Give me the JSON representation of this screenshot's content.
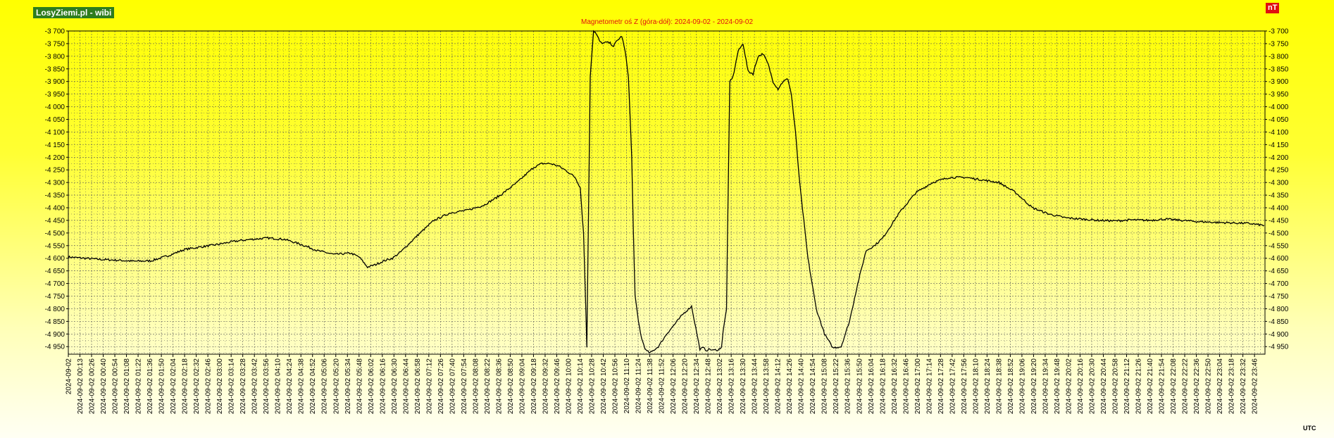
{
  "site_label": "LosyZiemi.pl - wibi",
  "unit_label": "nT",
  "utc_label": "UTC",
  "colors": {
    "line": "#000000",
    "grid": "#555555",
    "title": "#e01010",
    "badge": "#2e7d1e",
    "unit_badge": "#e01010"
  },
  "chart_data": {
    "type": "line",
    "title": "Magnetometr oś Z (góra-dół): 2024-09-02 - 2024-09-02",
    "xlabel": "",
    "ylabel": "",
    "ylim": [
      -4980,
      -3700
    ],
    "y_ticks": [
      -3700,
      -3750,
      -3800,
      -3850,
      -3900,
      -3950,
      -4000,
      -4050,
      -4100,
      -4150,
      -4200,
      -4250,
      -4300,
      -4350,
      -4400,
      -4450,
      -4500,
      -4550,
      -4600,
      -4650,
      -4700,
      -4750,
      -4800,
      -4850,
      -4900,
      -4950
    ],
    "y_tick_labels": [
      "-3 700",
      "-3 750",
      "-3 800",
      "-3 850",
      "-3 900",
      "-3 950",
      "-4 000",
      "-4 050",
      "-4 100",
      "-4 150",
      "-4 200",
      "-4 250",
      "-4 300",
      "-4 350",
      "-4 400",
      "-4 450",
      "-4 500",
      "-4 550",
      "-4 600",
      "-4 650",
      "-4 700",
      "-4 750",
      "-4 800",
      "-4 850",
      "-4 900",
      "-4 950"
    ],
    "x_tick_labels": [
      "2024-09-02",
      "2024-09-02 00:13",
      "2024-09-02 00:26",
      "2024-09-02 00:40",
      "2024-09-02 00:54",
      "2024-09-02 01:08",
      "2024-09-02 01:22",
      "2024-09-02 01:36",
      "2024-09-02 01:50",
      "2024-09-02 02:04",
      "2024-09-02 02:18",
      "2024-09-02 02:32",
      "2024-09-02 02:46",
      "2024-09-02 03:00",
      "2024-09-02 03:14",
      "2024-09-02 03:28",
      "2024-09-02 03:42",
      "2024-09-02 03:56",
      "2024-09-02 04:10",
      "2024-09-02 04:24",
      "2024-09-02 04:38",
      "2024-09-02 04:52",
      "2024-09-02 05:06",
      "2024-09-02 05:20",
      "2024-09-02 05:34",
      "2024-09-02 05:48",
      "2024-09-02 06:02",
      "2024-09-02 06:16",
      "2024-09-02 06:30",
      "2024-09-02 06:44",
      "2024-09-02 06:58",
      "2024-09-02 07:12",
      "2024-09-02 07:26",
      "2024-09-02 07:40",
      "2024-09-02 07:54",
      "2024-09-02 08:08",
      "2024-09-02 08:22",
      "2024-09-02 08:36",
      "2024-09-02 08:50",
      "2024-09-02 09:04",
      "2024-09-02 09:18",
      "2024-09-02 09:32",
      "2024-09-02 09:46",
      "2024-09-02 10:00",
      "2024-09-02 10:14",
      "2024-09-02 10:28",
      "2024-09-02 10:42",
      "2024-09-02 10:56",
      "2024-09-02 11:10",
      "2024-09-02 11:24",
      "2024-09-02 11:38",
      "2024-09-02 11:52",
      "2024-09-02 12:06",
      "2024-09-02 12:20",
      "2024-09-02 12:34",
      "2024-09-02 12:48",
      "2024-09-02 13:02",
      "2024-09-02 13:16",
      "2024-09-02 13:30",
      "2024-09-02 13:44",
      "2024-09-02 13:58",
      "2024-09-02 14:12",
      "2024-09-02 14:26",
      "2024-09-02 14:40",
      "2024-09-02 14:54",
      "2024-09-02 15:08",
      "2024-09-02 15:22",
      "2024-09-02 15:36",
      "2024-09-02 15:50",
      "2024-09-02 16:04",
      "2024-09-02 16:18",
      "2024-09-02 16:32",
      "2024-09-02 16:46",
      "2024-09-02 17:00",
      "2024-09-02 17:14",
      "2024-09-02 17:28",
      "2024-09-02 17:42",
      "2024-09-02 17:56",
      "2024-09-02 18:10",
      "2024-09-02 18:24",
      "2024-09-02 18:38",
      "2024-09-02 18:52",
      "2024-09-02 19:06",
      "2024-09-02 19:20",
      "2024-09-02 19:34",
      "2024-09-02 19:48",
      "2024-09-02 20:02",
      "2024-09-02 20:16",
      "2024-09-02 20:30",
      "2024-09-02 20:44",
      "2024-09-02 20:58",
      "2024-09-02 21:12",
      "2024-09-02 21:26",
      "2024-09-02 21:40",
      "2024-09-02 21:54",
      "2024-09-02 22:08",
      "2024-09-02 22:22",
      "2024-09-02 22:36",
      "2024-09-02 22:50",
      "2024-09-02 23:04",
      "2024-09-02 23:18",
      "2024-09-02 23:32",
      "2024-09-02 23:46"
    ],
    "grid": true,
    "legend": "none",
    "series": [
      {
        "x_minutes": [
          0,
          20,
          40,
          60,
          80,
          100,
          120,
          140,
          160,
          180,
          200,
          220,
          240,
          260,
          280,
          300,
          320,
          340,
          350,
          360,
          370,
          380,
          390,
          400,
          420,
          440,
          460,
          480,
          500,
          520,
          540,
          560,
          570,
          580,
          590,
          600,
          610,
          616,
          620,
          624,
          628,
          632,
          634,
          638,
          640,
          644,
          648,
          652,
          656,
          660,
          666,
          670,
          674,
          678,
          680,
          682,
          686,
          690,
          695,
          700,
          710,
          720,
          730,
          740,
          750,
          760,
          764,
          768,
          772,
          776,
          780,
          782,
          786,
          788,
          792,
          796,
          800,
          806,
          812,
          818,
          824,
          830,
          836,
          842,
          848,
          854,
          860,
          866,
          870,
          875,
          880,
          890,
          900,
          910,
          920,
          930,
          940,
          950,
          960,
          970,
          980,
          1000,
          1020,
          1040,
          1060,
          1080,
          1100,
          1120,
          1140,
          1160,
          1180,
          1200,
          1220,
          1240,
          1260,
          1280,
          1300,
          1320,
          1340,
          1360,
          1380,
          1400,
          1420,
          1439
        ],
        "values": [
          -4595,
          -4600,
          -4605,
          -4608,
          -4612,
          -4610,
          -4590,
          -4565,
          -4555,
          -4545,
          -4533,
          -4525,
          -4520,
          -4525,
          -4545,
          -4570,
          -4585,
          -4580,
          -4595,
          -4635,
          -4625,
          -4610,
          -4600,
          -4575,
          -4510,
          -4450,
          -4420,
          -4410,
          -4390,
          -4350,
          -4300,
          -4240,
          -4225,
          -4225,
          -4235,
          -4255,
          -4280,
          -4320,
          -4500,
          -4950,
          -3880,
          -3700,
          -3705,
          -3730,
          -3745,
          -3748,
          -3745,
          -3748,
          -3760,
          -3740,
          -3720,
          -3780,
          -3880,
          -4200,
          -4500,
          -4750,
          -4850,
          -4920,
          -4965,
          -4975,
          -4950,
          -4900,
          -4860,
          -4820,
          -4790,
          -4960,
          -4955,
          -4965,
          -4960,
          -4965,
          -4962,
          -4965,
          -4950,
          -4890,
          -4800,
          -3900,
          -3880,
          -3780,
          -3750,
          -3860,
          -3870,
          -3800,
          -3790,
          -3830,
          -3900,
          -3930,
          -3900,
          -3890,
          -3950,
          -4100,
          -4300,
          -4600,
          -4800,
          -4900,
          -4955,
          -4950,
          -4850,
          -4700,
          -4570,
          -4550,
          -4520,
          -4420,
          -4340,
          -4300,
          -4280,
          -4280,
          -4290,
          -4300,
          -4340,
          -4400,
          -4425,
          -4440,
          -4445,
          -4450,
          -4452,
          -4448,
          -4450,
          -4445,
          -4450,
          -4455,
          -4458,
          -4460,
          -4462,
          -4470
        ]
      }
    ]
  }
}
